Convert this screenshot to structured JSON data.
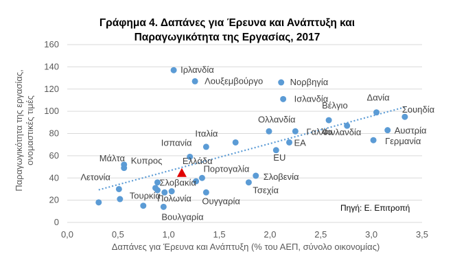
{
  "chart_data": {
    "type": "scatter",
    "title_lines": [
      "Γράφημα 4. Δαπάνες για Έρευνα και Ανάπτυξη και",
      "Παραγωγικότητα της Εργασίας, 2017"
    ],
    "xlabel": "Δαπάνες  για Έρευνα και Ανάπτυξη  (% του ΑΕΠ, σύνολο οικονομίας)",
    "ylabel_lines": [
      "Παραγωγικότητα της εργασίας,",
      "ονομαστικές τιμές"
    ],
    "xlim": [
      0,
      3.5
    ],
    "ylim": [
      0,
      160
    ],
    "x_ticks": [
      "0,0",
      "0,5",
      "1,0",
      "1,5",
      "2,0",
      "2,5",
      "3,0",
      "3,5"
    ],
    "y_ticks": [
      "0",
      "20",
      "40",
      "60",
      "80",
      "100",
      "120",
      "140",
      "160"
    ],
    "grid": "horizontal",
    "trendline": true,
    "source": "Πηγή: Ε. Επιτροπή",
    "colors": {
      "points": "#5b9bd5",
      "highlight": "#e00000",
      "trend": "#5b9bd5",
      "grid": "#d9d9d9"
    },
    "points": [
      {
        "label": "Ιρλανδία",
        "x": 1.05,
        "y": 137
      },
      {
        "label": "Λουξεμβούργο",
        "x": 1.26,
        "y": 127
      },
      {
        "label": "Νορβηγία",
        "x": 2.11,
        "y": 126
      },
      {
        "label": "Ισλανδία",
        "x": 2.13,
        "y": 111
      },
      {
        "label": "Δανία",
        "x": 3.05,
        "y": 99
      },
      {
        "label": "Σουηδία",
        "x": 3.33,
        "y": 95
      },
      {
        "label": "Βέλγιο",
        "x": 2.58,
        "y": 92
      },
      {
        "label": "Αυστρία",
        "x": 3.16,
        "y": 83
      },
      {
        "label": "Ολλανδία",
        "x": 1.99,
        "y": 82
      },
      {
        "label": "Γαλλία",
        "x": 2.25,
        "y": 82
      },
      {
        "label": "Φινλανδία",
        "x": 2.76,
        "y": 87
      },
      {
        "label": "Γερμανία",
        "x": 3.02,
        "y": 74
      },
      {
        "label": "Ιταλία",
        "x": 1.37,
        "y": 68
      },
      {
        "label": "",
        "x": 1.66,
        "y": 72
      },
      {
        "label": "EU",
        "x": 2.06,
        "y": 65
      },
      {
        "label": "ΕΑ",
        "x": 2.19,
        "y": 72
      },
      {
        "label": "Ισπανία",
        "x": 1.21,
        "y": 59
      },
      {
        "label": "Μάλτα",
        "x": 0.56,
        "y": 52
      },
      {
        "label": "Κυπρος",
        "x": 0.56,
        "y": 49
      },
      {
        "label": "Πορτογαλία",
        "x": 1.33,
        "y": 40
      },
      {
        "label": "Σλοβενία",
        "x": 1.86,
        "y": 42
      },
      {
        "label": "Τσεχία",
        "x": 1.79,
        "y": 36
      },
      {
        "label": "Σλοβακία",
        "x": 0.89,
        "y": 36
      },
      {
        "label": "Λετονία",
        "x": 0.51,
        "y": 30
      },
      {
        "label": "",
        "x": 0.87,
        "y": 31
      },
      {
        "label": "",
        "x": 0.89,
        "y": 29
      },
      {
        "label": "Τουρκία",
        "x": 0.96,
        "y": 27
      },
      {
        "label": "Πολωνία",
        "x": 1.03,
        "y": 28
      },
      {
        "label": "",
        "x": 1.27,
        "y": 37
      },
      {
        "label": "",
        "x": 0.52,
        "y": 21
      },
      {
        "label": "Ουγγαρία",
        "x": 1.37,
        "y": 27
      },
      {
        "label": "",
        "x": 0.31,
        "y": 18
      },
      {
        "label": "",
        "x": 0.75,
        "y": 15
      },
      {
        "label": "Βουλγαρία",
        "x": 0.95,
        "y": 14
      }
    ],
    "highlight": {
      "label": "Ελλάδα",
      "x": 1.13,
      "y": 44,
      "marker": "triangle"
    }
  }
}
